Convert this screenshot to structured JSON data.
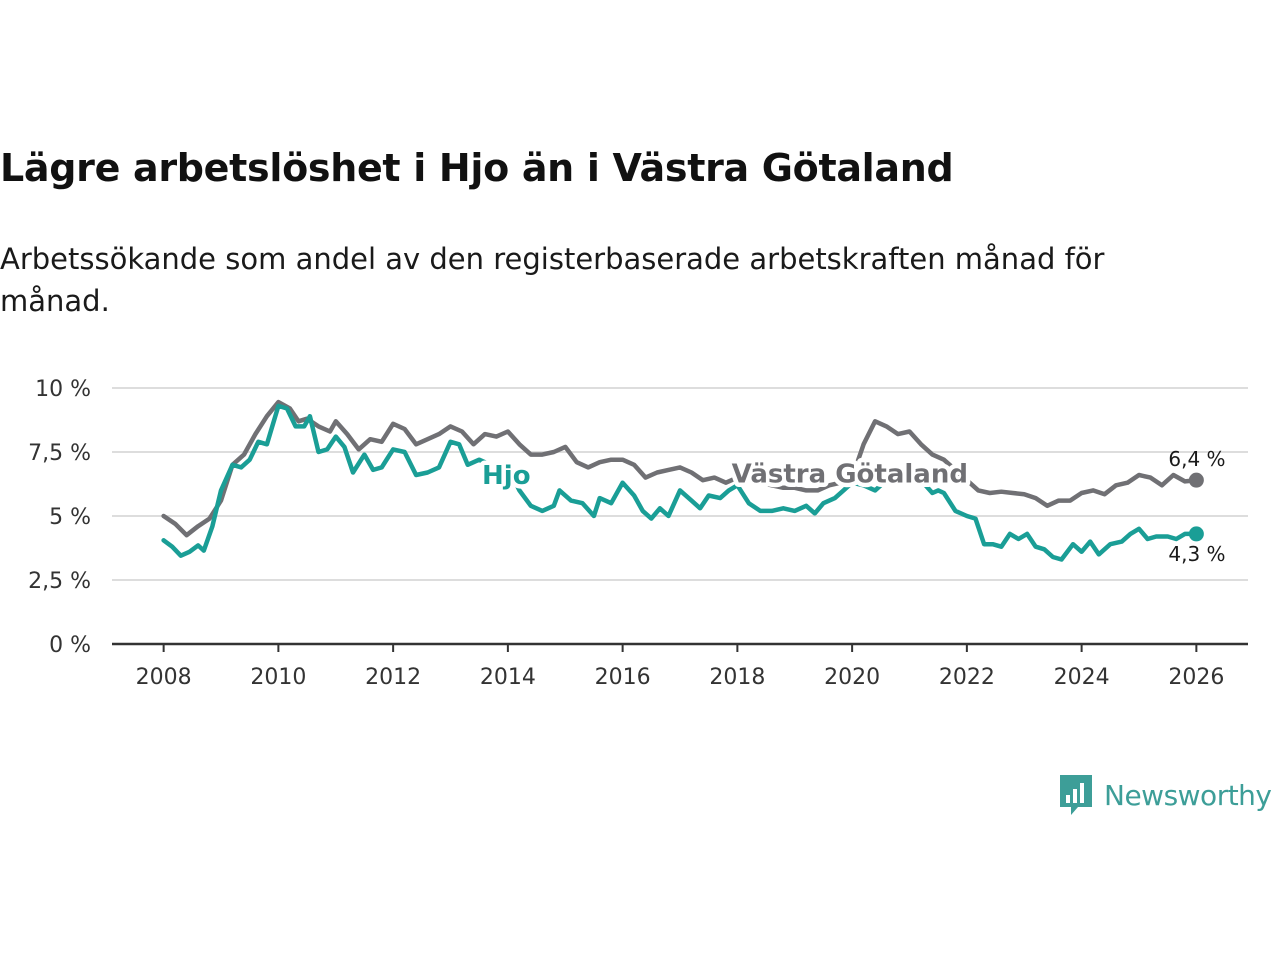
{
  "header": {
    "title": "Lägre arbetslöshet i Hjo än i Västra Götaland",
    "subtitle": "Arbetssökande som andel av den registerbaserade arbetskraften månad för månad."
  },
  "brand": {
    "name": "Newsworthy",
    "icon": "newsworthy-logo-icon",
    "color": "#3d9e98"
  },
  "colors": {
    "hjo": "#1a9e96",
    "vg": "#707074",
    "grid": "#dddddd",
    "axis": "#333333"
  },
  "chart_data": {
    "type": "line",
    "title": "Lägre arbetslöshet i Hjo än i Västra Götaland",
    "xlabel": "",
    "ylabel": "",
    "xlim": [
      2007.1,
      2026.9
    ],
    "ylim": [
      0,
      10
    ],
    "yticks": [
      0,
      2.5,
      5,
      7.5,
      10
    ],
    "ytick_labels": [
      "0 %",
      "2,5 %",
      "5 %",
      "7,5 %",
      "10 %"
    ],
    "xticks": [
      2008,
      2010,
      2012,
      2014,
      2016,
      2018,
      2020,
      2022,
      2024,
      2026
    ],
    "xtick_labels": [
      "2008",
      "2010",
      "2012",
      "2014",
      "2016",
      "2018",
      "2020",
      "2022",
      "2024",
      "2026"
    ],
    "grid": true,
    "legend": "inline labels",
    "series": [
      {
        "name": "Västra Götaland",
        "key": "vg",
        "label": "Västra Götaland",
        "end_label": "6,4 %",
        "points": [
          [
            2008.0,
            5.0
          ],
          [
            2008.2,
            4.7
          ],
          [
            2008.4,
            4.25
          ],
          [
            2008.6,
            4.6
          ],
          [
            2008.8,
            4.9
          ],
          [
            2009.0,
            5.6
          ],
          [
            2009.2,
            7.0
          ],
          [
            2009.4,
            7.4
          ],
          [
            2009.6,
            8.2
          ],
          [
            2009.8,
            8.9
          ],
          [
            2010.0,
            9.45
          ],
          [
            2010.2,
            9.2
          ],
          [
            2010.35,
            8.7
          ],
          [
            2010.5,
            8.8
          ],
          [
            2010.7,
            8.5
          ],
          [
            2010.9,
            8.3
          ],
          [
            2011.0,
            8.7
          ],
          [
            2011.2,
            8.2
          ],
          [
            2011.4,
            7.6
          ],
          [
            2011.6,
            8.0
          ],
          [
            2011.8,
            7.9
          ],
          [
            2012.0,
            8.6
          ],
          [
            2012.2,
            8.4
          ],
          [
            2012.4,
            7.8
          ],
          [
            2012.6,
            8.0
          ],
          [
            2012.8,
            8.2
          ],
          [
            2013.0,
            8.5
          ],
          [
            2013.2,
            8.3
          ],
          [
            2013.4,
            7.8
          ],
          [
            2013.6,
            8.2
          ],
          [
            2013.8,
            8.1
          ],
          [
            2014.0,
            8.3
          ],
          [
            2014.2,
            7.8
          ],
          [
            2014.4,
            7.4
          ],
          [
            2014.6,
            7.4
          ],
          [
            2014.8,
            7.5
          ],
          [
            2015.0,
            7.7
          ],
          [
            2015.2,
            7.1
          ],
          [
            2015.4,
            6.9
          ],
          [
            2015.6,
            7.1
          ],
          [
            2015.8,
            7.2
          ],
          [
            2016.0,
            7.2
          ],
          [
            2016.2,
            7.0
          ],
          [
            2016.4,
            6.5
          ],
          [
            2016.6,
            6.7
          ],
          [
            2016.8,
            6.8
          ],
          [
            2017.0,
            6.9
          ],
          [
            2017.2,
            6.7
          ],
          [
            2017.4,
            6.4
          ],
          [
            2017.6,
            6.5
          ],
          [
            2017.8,
            6.3
          ],
          [
            2018.0,
            6.5
          ],
          [
            2018.2,
            6.4
          ],
          [
            2018.4,
            6.3
          ],
          [
            2018.6,
            6.2
          ],
          [
            2018.8,
            6.1
          ],
          [
            2019.0,
            6.1
          ],
          [
            2019.2,
            6.0
          ],
          [
            2019.4,
            6.0
          ],
          [
            2019.6,
            6.2
          ],
          [
            2019.8,
            6.3
          ],
          [
            2020.0,
            6.5
          ],
          [
            2020.2,
            7.8
          ],
          [
            2020.4,
            8.7
          ],
          [
            2020.6,
            8.5
          ],
          [
            2020.8,
            8.2
          ],
          [
            2021.0,
            8.3
          ],
          [
            2021.2,
            7.8
          ],
          [
            2021.4,
            7.4
          ],
          [
            2021.6,
            7.2
          ],
          [
            2021.8,
            6.8
          ],
          [
            2022.0,
            6.4
          ],
          [
            2022.2,
            6.0
          ],
          [
            2022.4,
            5.9
          ],
          [
            2022.6,
            5.95
          ],
          [
            2022.8,
            5.9
          ],
          [
            2023.0,
            5.85
          ],
          [
            2023.2,
            5.7
          ],
          [
            2023.4,
            5.4
          ],
          [
            2023.6,
            5.6
          ],
          [
            2023.8,
            5.6
          ],
          [
            2024.0,
            5.9
          ],
          [
            2024.2,
            6.0
          ],
          [
            2024.4,
            5.85
          ],
          [
            2024.6,
            6.2
          ],
          [
            2024.8,
            6.3
          ],
          [
            2025.0,
            6.6
          ],
          [
            2025.2,
            6.5
          ],
          [
            2025.4,
            6.2
          ],
          [
            2025.6,
            6.6
          ],
          [
            2025.8,
            6.35
          ],
          [
            2026.0,
            6.4
          ]
        ]
      },
      {
        "name": "Hjo",
        "key": "hjo",
        "label": "Hjo",
        "end_label": "4,3 %",
        "points": [
          [
            2008.0,
            4.05
          ],
          [
            2008.15,
            3.8
          ],
          [
            2008.3,
            3.45
          ],
          [
            2008.45,
            3.6
          ],
          [
            2008.6,
            3.85
          ],
          [
            2008.7,
            3.65
          ],
          [
            2008.85,
            4.6
          ],
          [
            2009.0,
            6.0
          ],
          [
            2009.2,
            7.0
          ],
          [
            2009.35,
            6.9
          ],
          [
            2009.5,
            7.2
          ],
          [
            2009.65,
            7.9
          ],
          [
            2009.8,
            7.8
          ],
          [
            2010.0,
            9.3
          ],
          [
            2010.15,
            9.2
          ],
          [
            2010.3,
            8.5
          ],
          [
            2010.45,
            8.5
          ],
          [
            2010.55,
            8.9
          ],
          [
            2010.7,
            7.5
          ],
          [
            2010.85,
            7.6
          ],
          [
            2011.0,
            8.1
          ],
          [
            2011.15,
            7.7
          ],
          [
            2011.3,
            6.7
          ],
          [
            2011.5,
            7.4
          ],
          [
            2011.65,
            6.8
          ],
          [
            2011.8,
            6.9
          ],
          [
            2012.0,
            7.6
          ],
          [
            2012.2,
            7.5
          ],
          [
            2012.4,
            6.6
          ],
          [
            2012.6,
            6.7
          ],
          [
            2012.8,
            6.9
          ],
          [
            2013.0,
            7.9
          ],
          [
            2013.15,
            7.8
          ],
          [
            2013.3,
            7.0
          ],
          [
            2013.5,
            7.2
          ],
          [
            2013.7,
            7.0
          ],
          [
            2014.0,
            6.9
          ],
          [
            2014.2,
            6.0
          ],
          [
            2014.4,
            5.4
          ],
          [
            2014.6,
            5.2
          ],
          [
            2014.8,
            5.4
          ],
          [
            2014.9,
            6.0
          ],
          [
            2015.1,
            5.6
          ],
          [
            2015.3,
            5.5
          ],
          [
            2015.5,
            5.0
          ],
          [
            2015.6,
            5.7
          ],
          [
            2015.8,
            5.5
          ],
          [
            2016.0,
            6.3
          ],
          [
            2016.2,
            5.8
          ],
          [
            2016.35,
            5.2
          ],
          [
            2016.5,
            4.9
          ],
          [
            2016.65,
            5.3
          ],
          [
            2016.8,
            5.0
          ],
          [
            2017.0,
            6.0
          ],
          [
            2017.2,
            5.6
          ],
          [
            2017.35,
            5.3
          ],
          [
            2017.5,
            5.8
          ],
          [
            2017.7,
            5.7
          ],
          [
            2017.85,
            6.0
          ],
          [
            2018.0,
            6.2
          ],
          [
            2018.2,
            5.5
          ],
          [
            2018.4,
            5.2
          ],
          [
            2018.6,
            5.2
          ],
          [
            2018.8,
            5.3
          ],
          [
            2019.0,
            5.2
          ],
          [
            2019.2,
            5.4
          ],
          [
            2019.35,
            5.1
          ],
          [
            2019.5,
            5.5
          ],
          [
            2019.7,
            5.7
          ],
          [
            2019.85,
            6.0
          ],
          [
            2020.0,
            6.3
          ],
          [
            2020.2,
            6.2
          ],
          [
            2020.4,
            6.0
          ],
          [
            2020.6,
            6.4
          ],
          [
            2020.8,
            6.4
          ],
          [
            2021.0,
            6.6
          ],
          [
            2021.2,
            6.4
          ],
          [
            2021.4,
            5.9
          ],
          [
            2021.5,
            6.0
          ],
          [
            2021.6,
            5.9
          ],
          [
            2021.8,
            5.2
          ],
          [
            2022.0,
            5.0
          ],
          [
            2022.15,
            4.9
          ],
          [
            2022.3,
            3.9
          ],
          [
            2022.45,
            3.9
          ],
          [
            2022.6,
            3.8
          ],
          [
            2022.75,
            4.3
          ],
          [
            2022.9,
            4.1
          ],
          [
            2023.05,
            4.3
          ],
          [
            2023.2,
            3.8
          ],
          [
            2023.35,
            3.7
          ],
          [
            2023.5,
            3.4
          ],
          [
            2023.65,
            3.3
          ],
          [
            2023.85,
            3.9
          ],
          [
            2024.0,
            3.6
          ],
          [
            2024.15,
            4.0
          ],
          [
            2024.3,
            3.5
          ],
          [
            2024.5,
            3.9
          ],
          [
            2024.7,
            4.0
          ],
          [
            2024.85,
            4.3
          ],
          [
            2025.0,
            4.5
          ],
          [
            2025.15,
            4.1
          ],
          [
            2025.3,
            4.2
          ],
          [
            2025.5,
            4.2
          ],
          [
            2025.65,
            4.1
          ],
          [
            2025.8,
            4.3
          ],
          [
            2026.0,
            4.3
          ]
        ]
      }
    ]
  }
}
